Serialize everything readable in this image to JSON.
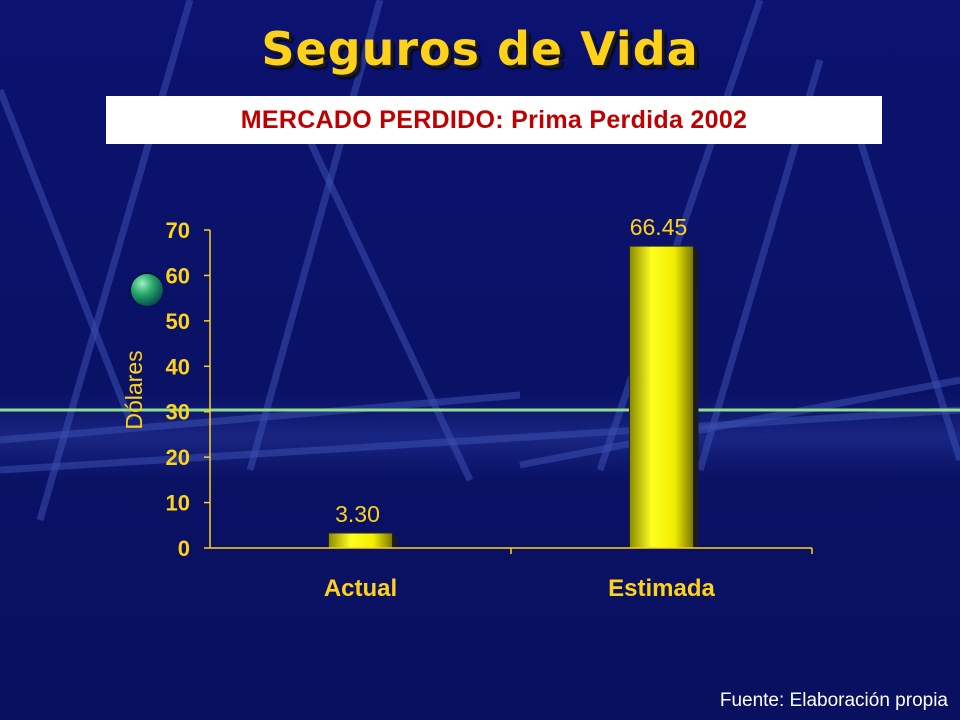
{
  "slide": {
    "title": "Seguros de Vida",
    "subtitle": "MERCADO PERDIDO: Prima Perdida 2002",
    "source": "Fuente: Elaboración propia",
    "colors": {
      "background": "#0a1266",
      "title": "#ffd21a",
      "subtitle": "#c00000",
      "bar": "#ffff00",
      "reference_line": "#8fe08a"
    },
    "icons": [
      "globe-icon"
    ]
  },
  "chart_data": {
    "type": "bar",
    "categories": [
      "Actual",
      "Estimada"
    ],
    "values": [
      3.3,
      66.45
    ],
    "data_labels": [
      "3.30",
      "66.45"
    ],
    "ylabel": "Dólares",
    "ylim": [
      0,
      70
    ],
    "yticks": [
      0,
      10,
      20,
      30,
      40,
      50,
      60,
      70
    ],
    "grid": false,
    "legend": "none"
  }
}
